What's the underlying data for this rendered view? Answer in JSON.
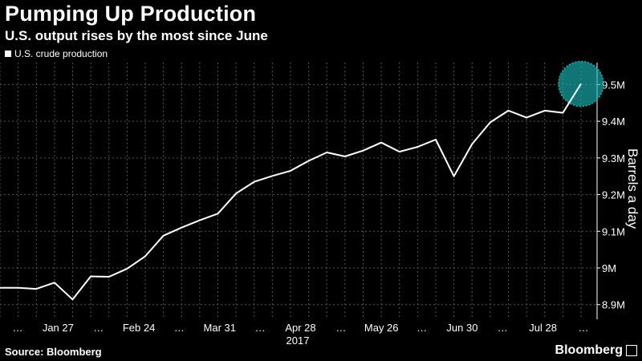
{
  "chart_data": {
    "type": "line",
    "title": "Pumping Up Production",
    "subtitle": "U.S. output rises by the most since June",
    "ylabel": "Barrels a day",
    "source": "Source: Bloomberg",
    "brand": "Bloomberg",
    "year_label": "2017",
    "legend_position": "top-left",
    "ylim": [
      8.86,
      9.56
    ],
    "yticks": [
      {
        "value": 8.9,
        "label": "8.9M"
      },
      {
        "value": 9.0,
        "label": "9M"
      },
      {
        "value": 9.1,
        "label": "9.1M"
      },
      {
        "value": 9.2,
        "label": "9.2M"
      },
      {
        "value": 9.3,
        "label": "9.3M"
      },
      {
        "value": 9.4,
        "label": "9.4M"
      },
      {
        "value": 9.5,
        "label": "9.5M"
      }
    ],
    "xticks": [
      "…",
      "Jan 27",
      "…",
      "Feb 24",
      "…",
      "Mar 31",
      "…",
      "Apr 28",
      "…",
      "May 26",
      "…",
      "Jun 30",
      "…",
      "Jul 28",
      "…"
    ],
    "highlight_color": "#1ab3b3",
    "line_color": "#ffffff",
    "grid": true,
    "series": [
      {
        "name": "U.S. crude production",
        "values": [
          8.946,
          8.946,
          8.943,
          8.96,
          8.914,
          8.977,
          8.976,
          8.998,
          9.032,
          9.088,
          9.11,
          9.13,
          9.148,
          9.203,
          9.235,
          9.251,
          9.265,
          9.292,
          9.315,
          9.304,
          9.32,
          9.342,
          9.317,
          9.33,
          9.35,
          9.25,
          9.338,
          9.397,
          9.429,
          9.41,
          9.429,
          9.423,
          9.502
        ]
      }
    ]
  }
}
